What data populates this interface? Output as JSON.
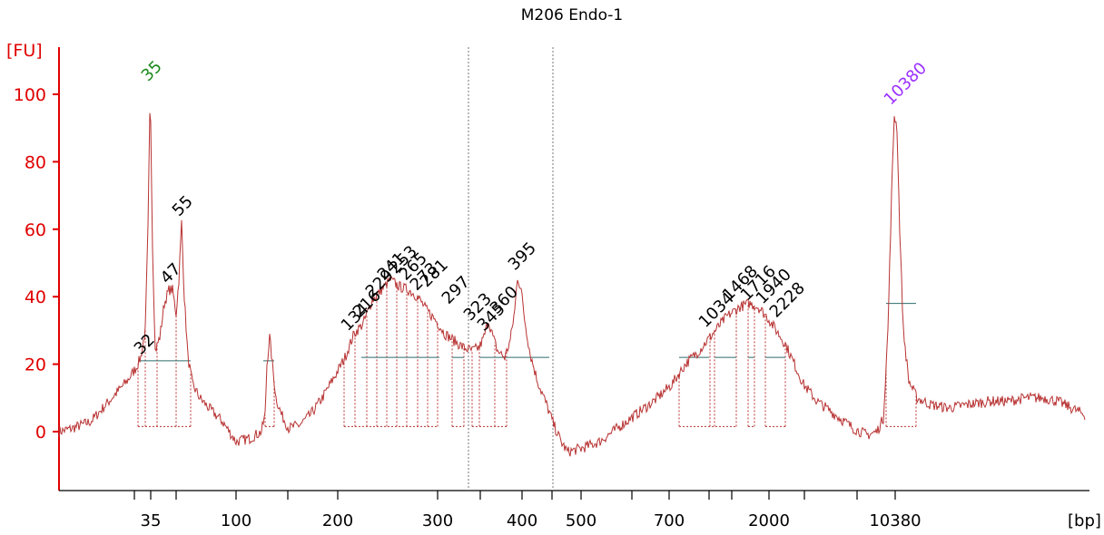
{
  "chart_data": {
    "type": "line",
    "title": "M206 Endo-1",
    "ylabel": "[FU]",
    "xlabel": "[bp]",
    "ylim": [
      -18,
      114
    ],
    "yticks": [
      0,
      20,
      40,
      60,
      80,
      100
    ],
    "xticks": [
      "35",
      "100",
      "200",
      "300",
      "400",
      "500",
      "700",
      "2000",
      "10380"
    ],
    "colors": {
      "axis": "#e00000",
      "trace": "#b83232",
      "marker_low": "#1a8a1a",
      "marker_high": "#9b30ff",
      "baseline": "#2e6b6b"
    },
    "peaks": [
      {
        "label": "32",
        "color": "#000000",
        "fu": 21
      },
      {
        "label": "35",
        "color": "#1a8a1a",
        "fu": 102
      },
      {
        "label": "47",
        "color": "#000000",
        "fu": 42
      },
      {
        "label": "55",
        "color": "#000000",
        "fu": 62
      },
      {
        "label": "134",
        "color": "#000000",
        "fu": 28
      },
      {
        "label": "216",
        "color": "#000000",
        "fu": 32
      },
      {
        "label": "229",
        "color": "#000000",
        "fu": 38
      },
      {
        "label": "241",
        "color": "#000000",
        "fu": 43
      },
      {
        "label": "253",
        "color": "#000000",
        "fu": 45
      },
      {
        "label": "265",
        "color": "#000000",
        "fu": 43
      },
      {
        "label": "273",
        "color": "#000000",
        "fu": 40
      },
      {
        "label": "281",
        "color": "#000000",
        "fu": 41
      },
      {
        "label": "297",
        "color": "#000000",
        "fu": 36
      },
      {
        "label": "323",
        "color": "#000000",
        "fu": 31
      },
      {
        "label": "345",
        "color": "#000000",
        "fu": 28
      },
      {
        "label": "360",
        "color": "#000000",
        "fu": 33
      },
      {
        "label": "395",
        "color": "#000000",
        "fu": 46
      },
      {
        "label": "1034",
        "color": "#000000",
        "fu": 29
      },
      {
        "label": "1468",
        "color": "#000000",
        "fu": 37
      },
      {
        "label": "1716",
        "color": "#000000",
        "fu": 37
      },
      {
        "label": "1940",
        "color": "#000000",
        "fu": 36
      },
      {
        "label": "2228",
        "color": "#000000",
        "fu": 32
      },
      {
        "label": "10380",
        "color": "#9b30ff",
        "fu": 95
      }
    ],
    "grid": false,
    "legend": "none"
  }
}
